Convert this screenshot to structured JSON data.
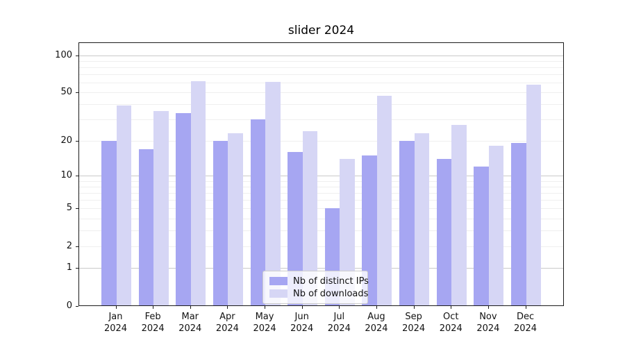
{
  "chart_data": {
    "type": "bar",
    "title": "slider 2024",
    "categories": [
      "Jan",
      "Feb",
      "Mar",
      "Apr",
      "May",
      "Jun",
      "Jul",
      "Aug",
      "Sep",
      "Oct",
      "Nov",
      "Dec"
    ],
    "category_year": "2024",
    "series": [
      {
        "name": "Nb of distinct IPs",
        "color": "#a6a6f2",
        "values": [
          20,
          17,
          34,
          20,
          30,
          16,
          5,
          15,
          20,
          14,
          12,
          19
        ]
      },
      {
        "name": "Nb of downloads",
        "color": "#d6d6f5",
        "values": [
          39,
          35,
          62,
          23,
          61,
          24,
          14,
          47,
          23,
          27,
          18,
          58
        ]
      }
    ],
    "y_axis": {
      "scale": "log1p",
      "tick_labels": [
        100,
        50,
        20,
        10,
        5,
        2,
        1,
        0
      ],
      "major_gridlines": [
        1,
        10,
        100
      ],
      "minor_gridlines": [
        2,
        3,
        4,
        5,
        6,
        7,
        8,
        9,
        20,
        30,
        40,
        50,
        60,
        70,
        80,
        90
      ],
      "ylim": [
        0,
        130
      ]
    },
    "legend": {
      "entries": [
        "Nb of distinct IPs",
        "Nb of downloads"
      ],
      "position": "lower center"
    },
    "grid": true
  }
}
